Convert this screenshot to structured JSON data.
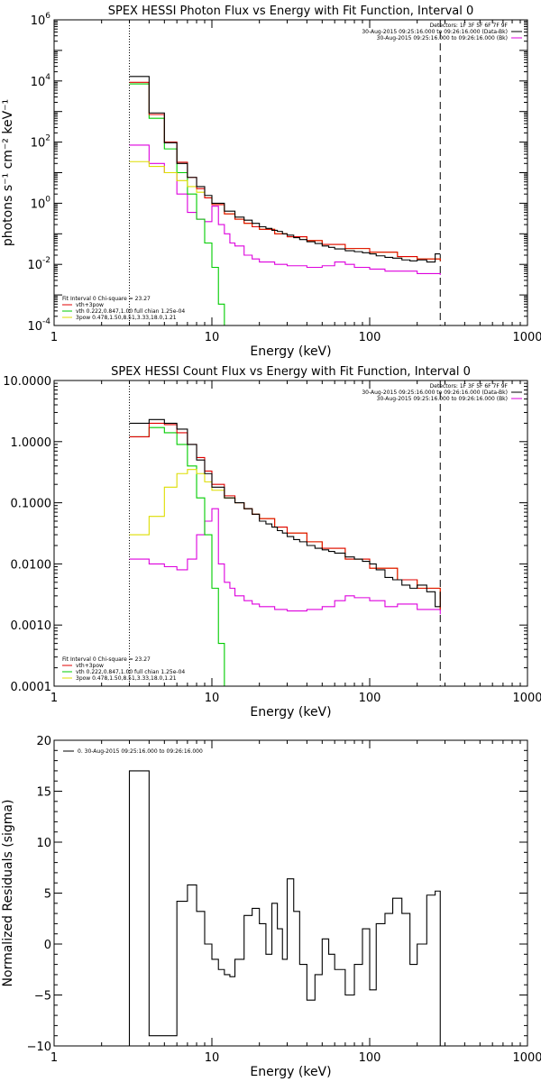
{
  "chart_data": [
    {
      "type": "line",
      "title": "SPEX HESSI Photon Flux vs Energy with Fit Function, Interval 0",
      "xlabel": "Energy (keV)",
      "ylabel": "photons s⁻¹ cm⁻² keV⁻¹",
      "xscale": "log",
      "yscale": "log",
      "xlim": [
        1,
        1000
      ],
      "ylim": [
        0.0001,
        1000000
      ],
      "xticks": [
        "1",
        "10",
        "100",
        "1000"
      ],
      "yticks": [
        {
          "value": 0.0001,
          "base": "10",
          "exp": "-4"
        },
        {
          "value": 0.01,
          "base": "10",
          "exp": "-2"
        },
        {
          "value": 1,
          "base": "10",
          "exp": "0"
        },
        {
          "value": 100,
          "base": "10",
          "exp": "2"
        },
        {
          "value": 10000,
          "base": "10",
          "exp": "4"
        },
        {
          "value": 1000000,
          "base": "10",
          "exp": "6"
        }
      ],
      "header_lines": [
        "Detectors: 1F 3F 5F 6F 7F 9F",
        "30-Aug-2015 09:25:16.000 to 09:26:16.000 (Data-Bk)",
        "30-Aug-2015 09:25:16.000 to 09:26:16.000 (Bk)"
      ],
      "fit_lines": [
        "Fit Interval 0    Chi-square = 23.27",
        "vth+3pow",
        "vth 0.222,0.847,1.00  full chian 1.25e-04",
        "3pow 0.478,1.50,8.51,3.33,18.0,1.21"
      ],
      "ref_lines": {
        "dotted_x": 3,
        "dashed_x": 280
      },
      "series": [
        {
          "name": "data",
          "color": "#000000",
          "x": [
            3.0,
            4.0,
            5.0,
            6.0,
            7.0,
            8.0,
            9.0,
            10.0,
            12.0,
            14.0,
            16.0,
            18.0,
            20.0,
            22.0,
            24.0,
            26.0,
            28.0,
            30.0,
            33.0,
            36.0,
            40.0,
            45.0,
            50.0,
            55.0,
            60.0,
            70.0,
            80.0,
            90.0,
            100.0,
            110.0,
            125.0,
            140.0,
            160.0,
            180.0,
            200.0,
            230.0,
            260.0,
            280.0
          ],
          "y": [
            14000,
            900,
            95,
            20,
            7,
            3.5,
            1.8,
            1.0,
            0.55,
            0.35,
            0.28,
            0.22,
            0.17,
            0.15,
            0.13,
            0.12,
            0.1,
            0.09,
            0.075,
            0.065,
            0.055,
            0.048,
            0.04,
            0.036,
            0.032,
            0.028,
            0.026,
            0.024,
            0.022,
            0.019,
            0.017,
            0.016,
            0.014,
            0.013,
            0.014,
            0.012,
            0.022,
            0.022
          ]
        },
        {
          "name": "vth+3pow",
          "color": "#e00000",
          "x": [
            3.0,
            4.0,
            5.0,
            6.0,
            7.0,
            8.0,
            9.0,
            10.0,
            12.0,
            14.0,
            16.0,
            18.0,
            20.0,
            25.0,
            30.0,
            40.0,
            50.0,
            70.0,
            100.0,
            150.0,
            200.0,
            280.0
          ],
          "y": [
            9000,
            800,
            100,
            22,
            7,
            3,
            1.5,
            0.9,
            0.45,
            0.3,
            0.22,
            0.17,
            0.14,
            0.1,
            0.08,
            0.06,
            0.045,
            0.033,
            0.025,
            0.018,
            0.015,
            0.013
          ]
        },
        {
          "name": "vth",
          "color": "#00cc00",
          "x": [
            3.0,
            4.0,
            5.0,
            6.0,
            7.0,
            8.0,
            9.0,
            10.0,
            11.0,
            12.0
          ],
          "y": [
            8000,
            600,
            60,
            10,
            2,
            0.3,
            0.05,
            0.008,
            0.0005,
            0.0001
          ]
        },
        {
          "name": "3pow",
          "color": "#dddd00",
          "x": [
            3.0,
            4.0,
            5.0,
            6.0,
            7.0,
            8.0,
            9.0,
            10.0,
            12.0,
            14.0,
            16.0,
            18.0,
            20.0,
            25.0,
            30.0,
            40.0,
            50.0,
            70.0,
            100.0,
            150.0,
            200.0,
            280.0
          ],
          "y": [
            23,
            16,
            10,
            5.5,
            3.5,
            2.3,
            1.5,
            0.9,
            0.45,
            0.3,
            0.22,
            0.17,
            0.14,
            0.1,
            0.08,
            0.06,
            0.045,
            0.033,
            0.025,
            0.018,
            0.015,
            0.013
          ]
        },
        {
          "name": "background",
          "color": "#dd00dd",
          "x": [
            3.0,
            4.0,
            5.0,
            6.0,
            7.0,
            8.0,
            9.0,
            10.0,
            11.0,
            12.0,
            13.0,
            14.0,
            16.0,
            18.0,
            20.0,
            25.0,
            30.0,
            40.0,
            50.0,
            60.0,
            70.0,
            80.0,
            100.0,
            125.0,
            150.0,
            200.0,
            280.0
          ],
          "y": [
            80,
            20,
            10,
            2,
            0.5,
            0.3,
            0.25,
            0.8,
            0.2,
            0.1,
            0.05,
            0.04,
            0.02,
            0.015,
            0.012,
            0.01,
            0.009,
            0.008,
            0.009,
            0.012,
            0.01,
            0.008,
            0.007,
            0.006,
            0.006,
            0.005,
            0.0045
          ]
        }
      ]
    },
    {
      "type": "line",
      "title": "SPEX HESSI Count Flux vs Energy with Fit Function, Interval 0",
      "xlabel": "Energy (keV)",
      "ylabel": "",
      "xscale": "log",
      "yscale": "log",
      "xlim": [
        1,
        1000
      ],
      "ylim": [
        0.0001,
        10
      ],
      "xticks": [
        "1",
        "10",
        "100",
        "1000"
      ],
      "yticks": [
        {
          "value": 0.0001,
          "label": "0.0001"
        },
        {
          "value": 0.001,
          "label": "0.0010"
        },
        {
          "value": 0.01,
          "label": "0.0100"
        },
        {
          "value": 0.1,
          "label": "0.1000"
        },
        {
          "value": 1,
          "label": "1.0000"
        },
        {
          "value": 10,
          "label": "10.0000"
        }
      ],
      "header_lines": [
        "Detectors: 1F 3F 5F 6F 7F 9F",
        "30-Aug-2015 09:25:16.000 to 09:26:16.000 (Data-Bk)",
        "30-Aug-2015 09:25:16.000 to 09:26:16.000 (Bk)"
      ],
      "fit_lines": [
        "Fit Interval 0    Chi-square = 23.27",
        "vth+3pow",
        "vth 0.222,0.847,1.00  full chian 1.25e-04",
        "3pow 0.478,1.50,8.51,3.33,18.0,1.21"
      ],
      "ref_lines": {
        "dotted_x": 3,
        "dashed_x": 280
      },
      "series": [
        {
          "name": "data",
          "color": "#000000",
          "x": [
            3.0,
            4.0,
            5.0,
            6.0,
            7.0,
            8.0,
            9.0,
            10.0,
            12.0,
            14.0,
            16.0,
            18.0,
            20.0,
            22.0,
            24.0,
            26.0,
            28.0,
            30.0,
            33.0,
            36.0,
            40.0,
            45.0,
            50.0,
            55.0,
            60.0,
            70.0,
            80.0,
            90.0,
            100.0,
            110.0,
            125.0,
            140.0,
            160.0,
            180.0,
            200.0,
            230.0,
            260.0,
            280.0
          ],
          "y": [
            2.0,
            2.3,
            2.0,
            1.6,
            0.9,
            0.5,
            0.3,
            0.18,
            0.12,
            0.1,
            0.08,
            0.065,
            0.05,
            0.045,
            0.04,
            0.035,
            0.032,
            0.028,
            0.025,
            0.023,
            0.02,
            0.018,
            0.017,
            0.016,
            0.015,
            0.013,
            0.012,
            0.011,
            0.01,
            0.008,
            0.006,
            0.0055,
            0.0045,
            0.004,
            0.0045,
            0.0035,
            0.002,
            0.0035
          ]
        },
        {
          "name": "vth+3pow",
          "color": "#e00000",
          "x": [
            3.0,
            4.0,
            5.0,
            6.0,
            7.0,
            8.0,
            9.0,
            10.0,
            12.0,
            14.0,
            16.0,
            18.0,
            20.0,
            25.0,
            30.0,
            40.0,
            50.0,
            70.0,
            100.0,
            150.0,
            200.0,
            280.0
          ],
          "y": [
            1.2,
            2.0,
            1.9,
            1.4,
            0.9,
            0.55,
            0.33,
            0.2,
            0.13,
            0.1,
            0.08,
            0.065,
            0.055,
            0.04,
            0.032,
            0.023,
            0.018,
            0.012,
            0.0085,
            0.0055,
            0.004,
            0.0018
          ]
        },
        {
          "name": "vth",
          "color": "#00cc00",
          "x": [
            3.0,
            4.0,
            5.0,
            6.0,
            7.0,
            8.0,
            9.0,
            10.0,
            11.0,
            12.0
          ],
          "y": [
            1.2,
            1.7,
            1.4,
            0.9,
            0.4,
            0.12,
            0.03,
            0.004,
            0.0005,
            0.0001
          ]
        },
        {
          "name": "3pow",
          "color": "#dddd00",
          "x": [
            3.0,
            4.0,
            5.0,
            6.0,
            7.0,
            8.0,
            9.0,
            10.0,
            12.0,
            14.0,
            16.0,
            18.0,
            20.0,
            25.0,
            30.0,
            40.0,
            50.0,
            70.0,
            100.0,
            150.0,
            200.0,
            280.0
          ],
          "y": [
            0.03,
            0.06,
            0.18,
            0.3,
            0.35,
            0.3,
            0.22,
            0.16,
            0.12,
            0.1,
            0.08,
            0.065,
            0.055,
            0.04,
            0.032,
            0.023,
            0.018,
            0.012,
            0.0085,
            0.0055,
            0.004,
            0.0018
          ]
        },
        {
          "name": "background",
          "color": "#dd00dd",
          "x": [
            3.0,
            4.0,
            5.0,
            6.0,
            7.0,
            8.0,
            9.0,
            10.0,
            11.0,
            12.0,
            13.0,
            14.0,
            16.0,
            18.0,
            20.0,
            25.0,
            30.0,
            40.0,
            50.0,
            60.0,
            70.0,
            80.0,
            100.0,
            125.0,
            150.0,
            200.0,
            280.0
          ],
          "y": [
            0.012,
            0.01,
            0.009,
            0.008,
            0.012,
            0.03,
            0.05,
            0.08,
            0.01,
            0.005,
            0.004,
            0.003,
            0.0025,
            0.0022,
            0.002,
            0.0018,
            0.0017,
            0.0018,
            0.002,
            0.0025,
            0.003,
            0.0028,
            0.0025,
            0.002,
            0.0022,
            0.0018,
            0.0015
          ]
        }
      ]
    },
    {
      "type": "line",
      "title": "",
      "xlabel": "Energy (keV)",
      "ylabel": "Normalized Residuals (sigma)",
      "xscale": "log",
      "yscale": "linear",
      "xlim": [
        1,
        1000
      ],
      "ylim": [
        -10,
        20
      ],
      "xticks": [
        "1",
        "10",
        "100",
        "1000"
      ],
      "yticks": [
        {
          "value": -10,
          "label": "−10"
        },
        {
          "value": -5,
          "label": "−5"
        },
        {
          "value": 0,
          "label": "0"
        },
        {
          "value": 5,
          "label": "5"
        },
        {
          "value": 10,
          "label": "10"
        },
        {
          "value": 15,
          "label": "15"
        },
        {
          "value": 20,
          "label": "20"
        }
      ],
      "legend": "0. 30-Aug-2015 09:25:16.000 to 09:26:16.000",
      "series": [
        {
          "name": "residuals",
          "color": "#000000",
          "x": [
            3.0,
            4.0,
            5.0,
            6.0,
            7.0,
            8.0,
            9.0,
            10.0,
            11.0,
            12.0,
            13.0,
            14.0,
            16.0,
            18.0,
            20.0,
            22.0,
            24.0,
            26.0,
            28.0,
            30.0,
            33.0,
            36.0,
            40.0,
            45.0,
            50.0,
            55.0,
            60.0,
            70.0,
            80.0,
            90.0,
            100.0,
            110.0,
            125.0,
            140.0,
            160.0,
            180.0,
            200.0,
            230.0,
            260.0,
            280.0
          ],
          "y": [
            17,
            -9,
            -9,
            4.2,
            5.8,
            3.2,
            0,
            -1.5,
            -2.5,
            -3,
            -3.2,
            -1.5,
            2.8,
            3.5,
            2.0,
            -1.0,
            4.0,
            1.5,
            -1.5,
            6.4,
            3.2,
            -2.0,
            -5.5,
            -3.0,
            0.5,
            -1.0,
            -2.5,
            -5.0,
            -2.0,
            1.5,
            -4.5,
            2.0,
            3.0,
            4.5,
            3.0,
            -2.0,
            0,
            4.8,
            5.2,
            0
          ]
        }
      ]
    }
  ]
}
